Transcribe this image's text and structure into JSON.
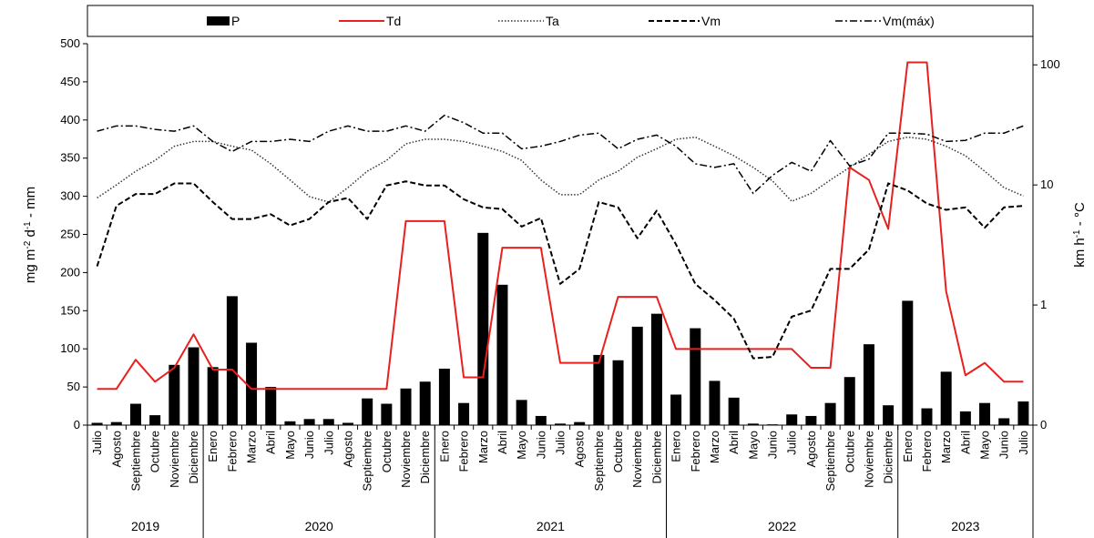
{
  "chart_data": {
    "type": "bar-line-combo",
    "months": [
      "Julio",
      "Agosto",
      "Septiembre",
      "Octubre",
      "Noviembre",
      "Diciembre",
      "Enero",
      "Febrero",
      "Marzo",
      "Abril",
      "Mayo",
      "Junio",
      "Julio",
      "Agosto",
      "Septiembre",
      "Octubre",
      "Noviembre",
      "Diciembre",
      "Enero",
      "Febrero",
      "Marzo",
      "Abril",
      "Mayo",
      "Junio",
      "Julio",
      "Agosto",
      "Septiembre",
      "Octubre",
      "Noviembre",
      "Diciembre",
      "Enero",
      "Febrero",
      "Marzo",
      "Abril",
      "Mayo",
      "Junio",
      "Julio",
      "Agosto",
      "Septiembre",
      "Octubre",
      "Noviembre",
      "Diciembre",
      "Enero",
      "Febrero",
      "Marzo",
      "Abril",
      "Mayo",
      "Junio",
      "Julio"
    ],
    "years": [
      {
        "label": "2019",
        "start": 0,
        "end": 5
      },
      {
        "label": "2020",
        "start": 6,
        "end": 17
      },
      {
        "label": "2021",
        "start": 18,
        "end": 29
      },
      {
        "label": "2022",
        "start": 30,
        "end": 41
      },
      {
        "label": "2023",
        "start": 42,
        "end": 48
      }
    ],
    "left_axis": {
      "label_prefix": "mg m",
      "label_mid": " d",
      "label_suffix": " - mm",
      "min": 0,
      "max": 500,
      "ticks": [
        0,
        50,
        100,
        150,
        200,
        250,
        300,
        350,
        400,
        450,
        500
      ]
    },
    "right_axis": {
      "label_prefix": "km h",
      "label_suffix": " - °C",
      "scale": "log",
      "min": 0.1,
      "max": 150,
      "ticks": [
        {
          "value": 0.1,
          "label": "0"
        },
        {
          "value": 1,
          "label": "1"
        },
        {
          "value": 10,
          "label": "10"
        },
        {
          "value": 100,
          "label": "100"
        }
      ]
    },
    "series": [
      {
        "name": "P",
        "kind": "bar",
        "axis": "left",
        "color": "#000000",
        "values": [
          3,
          4,
          28,
          13,
          79,
          102,
          76,
          169,
          108,
          50,
          5,
          8,
          8,
          3,
          35,
          28,
          48,
          57,
          74,
          29,
          252,
          184,
          33,
          12,
          2,
          4,
          92,
          85,
          129,
          146,
          40,
          127,
          58,
          36,
          2,
          1,
          14,
          12,
          29,
          63,
          106,
          26,
          163,
          22,
          70,
          18,
          29,
          9,
          31
        ]
      },
      {
        "name": "Td",
        "kind": "line",
        "axis": "right",
        "color": "#e8201e",
        "dash": "solid",
        "values": [
          0.2,
          0.2,
          0.35,
          0.23,
          0.3,
          0.57,
          0.29,
          0.29,
          0.2,
          0.2,
          0.2,
          0.2,
          0.2,
          0.2,
          0.2,
          0.2,
          5,
          5,
          5,
          0.25,
          0.25,
          3,
          3,
          3,
          0.33,
          0.33,
          0.33,
          1.17,
          1.17,
          1.17,
          0.43,
          0.43,
          0.43,
          0.43,
          0.43,
          0.43,
          0.43,
          0.3,
          0.3,
          14,
          11,
          4.3,
          105,
          105,
          1.3,
          0.26,
          0.33,
          0.23,
          0.23
        ]
      },
      {
        "name": "Ta",
        "kind": "line",
        "axis": "right",
        "color": "#333333",
        "dash": "dotted",
        "values": [
          7.8,
          10,
          13,
          16,
          21,
          23,
          23,
          21,
          19.5,
          15,
          11,
          8,
          7.2,
          9.5,
          13,
          16,
          22,
          24,
          24,
          23,
          21,
          19,
          16,
          11,
          8.3,
          8.3,
          11,
          13,
          17,
          20,
          24,
          25,
          21,
          17.5,
          14,
          10.8,
          7.3,
          8.5,
          11,
          14,
          18,
          23,
          25,
          24,
          21,
          17.5,
          13,
          9.5,
          8.1
        ]
      },
      {
        "name": "Vm",
        "kind": "line",
        "axis": "right",
        "color": "#000000",
        "dash": "dashed",
        "values": [
          2.1,
          6.7,
          8.4,
          8.4,
          10.3,
          10.3,
          7.2,
          5.2,
          5.2,
          5.7,
          4.6,
          5.2,
          7.2,
          7.8,
          5.2,
          9.9,
          10.7,
          9.9,
          9.9,
          7.6,
          6.5,
          6.3,
          4.5,
          5.3,
          1.5,
          2,
          7.2,
          6.5,
          3.6,
          6.1,
          3.2,
          1.5,
          1.1,
          0.77,
          0.36,
          0.37,
          0.8,
          0.9,
          2,
          2,
          2.9,
          10.3,
          9,
          7,
          6.2,
          6.5,
          4.4,
          6.5,
          6.7
        ]
      },
      {
        "name": "Vm(máx)",
        "kind": "line",
        "axis": "right",
        "color": "#000000",
        "dash": "dashdot",
        "values": [
          28,
          31,
          31,
          29,
          28,
          31,
          23,
          19,
          23,
          23,
          24,
          23,
          28,
          31,
          28,
          28,
          31,
          28,
          38,
          33,
          27,
          27,
          20,
          21,
          23,
          26,
          27,
          20,
          24,
          26,
          21,
          15,
          14,
          15,
          8.5,
          12,
          15.4,
          13,
          23.4,
          14.4,
          16.4,
          27,
          27,
          26.5,
          23,
          23.5,
          27,
          27,
          31
        ]
      }
    ]
  },
  "legend": {
    "items": [
      {
        "label": "P"
      },
      {
        "label": "Td"
      },
      {
        "label": "Ta"
      },
      {
        "label": "Vm"
      },
      {
        "label": "Vm(máx)"
      }
    ]
  }
}
